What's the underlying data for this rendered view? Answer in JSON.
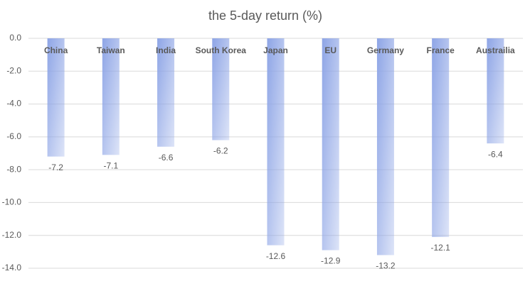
{
  "chart_data": {
    "type": "bar",
    "title": "the 5-day return (%)",
    "categories": [
      "China",
      "Taiwan",
      "India",
      "South Korea",
      "Japan",
      "EU",
      "Germany",
      "France",
      "Austrailia"
    ],
    "values": [
      -7.2,
      -7.1,
      -6.6,
      -6.2,
      -12.6,
      -12.9,
      -13.2,
      -12.1,
      -6.4
    ],
    "color": "#8ea5e6",
    "ylim": [
      -14,
      0
    ],
    "yticks": [
      {
        "value": 0,
        "label": "0.0"
      },
      {
        "value": -2,
        "label": "-2.0"
      },
      {
        "value": -4,
        "label": "-4.0"
      },
      {
        "value": -6,
        "label": "-6.0"
      },
      {
        "value": -8,
        "label": "-8.0"
      },
      {
        "value": -10,
        "label": "-10.0"
      },
      {
        "value": -12,
        "label": "-12.0"
      },
      {
        "value": -14,
        "label": "-14.0"
      }
    ],
    "grid": true
  }
}
